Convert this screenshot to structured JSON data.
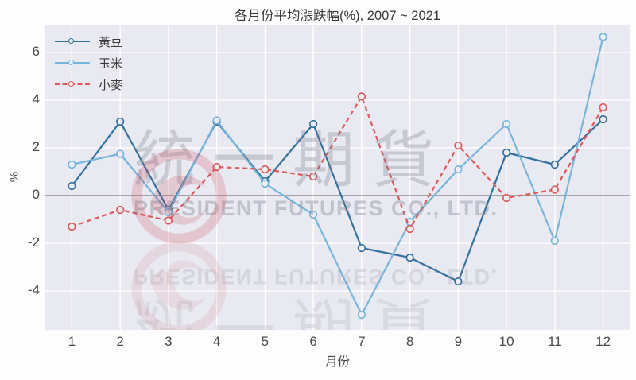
{
  "chart_data": {
    "type": "line",
    "title": "各月份平均漲跌幅(%), 2007 ~ 2021",
    "xlabel": "月份",
    "ylabel": "%",
    "x": [
      1,
      2,
      3,
      4,
      5,
      6,
      7,
      8,
      9,
      10,
      11,
      12
    ],
    "xlim": [
      0.45,
      12.55
    ],
    "ylim": [
      -5.63,
      7.13
    ],
    "yticks": [
      -4,
      -2,
      0,
      2,
      4,
      6
    ],
    "grid": true,
    "zero_line": true,
    "legend_position": "upper-left",
    "series": [
      {
        "name": "黃豆",
        "color": "#33719f",
        "style": "solid",
        "values": [
          0.4,
          3.1,
          -0.6,
          3.1,
          0.6,
          3.0,
          -2.2,
          -2.6,
          -3.6,
          1.8,
          1.3,
          3.2
        ]
      },
      {
        "name": "玉米",
        "color": "#77b5dc",
        "style": "solid",
        "values": [
          1.3,
          1.75,
          -0.7,
          3.15,
          0.5,
          -0.8,
          -5.0,
          -1.1,
          1.1,
          3.0,
          -1.9,
          6.65
        ]
      },
      {
        "name": "小麥",
        "color": "#dd5a5a",
        "style": "dashed",
        "values": [
          -1.3,
          -0.6,
          -1.05,
          1.2,
          1.1,
          0.8,
          4.15,
          -1.4,
          2.1,
          -0.1,
          0.25,
          3.7
        ]
      }
    ]
  },
  "watermark": {
    "cjk": "統一期貨",
    "en": "PRESIDENT FUTURES CO., LTD.",
    "logo_color": "#c84650"
  },
  "style_colors": {
    "plot_background": "#e9e9f1",
    "gridline": "#ffffff",
    "zero_line": "#8a8a8a",
    "marker_fill": "#edeff5"
  }
}
